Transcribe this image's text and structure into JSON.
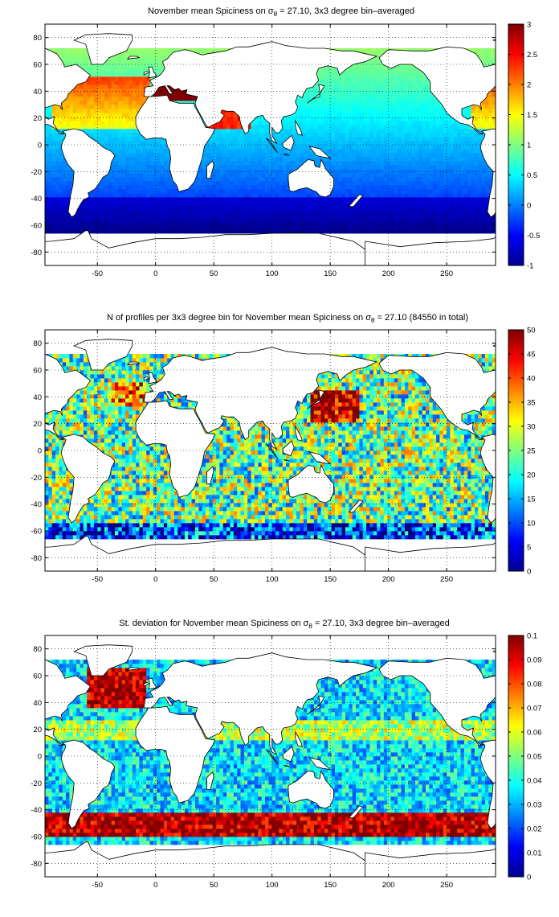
{
  "chart_data": [
    {
      "type": "heatmap",
      "title": "November mean Spiciness on σθ = 27.10, 3x3 degree bin–averaged",
      "title_parts": [
        "November mean Spiciness on ",
        "σ",
        "θ",
        " = 27.10, 3x3 degree bin–averaged"
      ],
      "xlim": [
        -95,
        292
      ],
      "ylim": [
        -90,
        90
      ],
      "xticks": [
        "-50",
        "0",
        "50",
        "100",
        "150",
        "200",
        "250"
      ],
      "xtick_values": [
        -50,
        0,
        50,
        100,
        150,
        200,
        250
      ],
      "yticks": [
        "80",
        "60",
        "40",
        "20",
        "0",
        "-20",
        "-40",
        "-60",
        "-80"
      ],
      "ytick_values": [
        80,
        60,
        40,
        20,
        0,
        -20,
        -40,
        -60,
        -80
      ],
      "colorbar": {
        "min": -1,
        "max": 3,
        "ticks": [
          "3",
          "2.5",
          "2",
          "1.5",
          "1",
          "0.5",
          "0",
          "-0.5",
          "-1"
        ],
        "tick_values": [
          3,
          2.5,
          2,
          1.5,
          1,
          0.5,
          0,
          -0.5,
          -1
        ]
      },
      "colormap": "jet",
      "grid": true
    },
    {
      "type": "heatmap",
      "title": "N of profiles per 3x3 degree bin for November mean Spiciness on σθ = 27.10 (84550 in total)",
      "title_parts": [
        "N of profiles per 3x3 degree bin for November mean Spiciness on ",
        "σ",
        "θ",
        " = 27.10 (84550 in total)"
      ],
      "xlim": [
        -95,
        292
      ],
      "ylim": [
        -90,
        90
      ],
      "xticks": [
        "-50",
        "0",
        "50",
        "100",
        "150",
        "200",
        "250"
      ],
      "xtick_values": [
        -50,
        0,
        50,
        100,
        150,
        200,
        250
      ],
      "yticks": [
        "80",
        "60",
        "40",
        "20",
        "0",
        "-20",
        "-40",
        "-60",
        "-80"
      ],
      "ytick_values": [
        80,
        60,
        40,
        20,
        0,
        -20,
        -40,
        -60,
        -80
      ],
      "colorbar": {
        "min": 0,
        "max": 50,
        "ticks": [
          "50",
          "45",
          "40",
          "35",
          "30",
          "25",
          "20",
          "15",
          "10",
          "5",
          "0"
        ],
        "tick_values": [
          50,
          45,
          40,
          35,
          30,
          25,
          20,
          15,
          10,
          5,
          0
        ]
      },
      "colormap": "jet",
      "grid": true
    },
    {
      "type": "heatmap",
      "title": "St. deviation for November mean Spiciness on σθ = 27.10, 3x3 degree bin–averaged",
      "title_parts": [
        "St. deviation for November mean Spiciness on ",
        "σ",
        "θ",
        " = 27.10, 3x3 degree bin–averaged"
      ],
      "xlim": [
        -95,
        292
      ],
      "ylim": [
        -90,
        90
      ],
      "xticks": [
        "-50",
        "0",
        "50",
        "100",
        "150",
        "200",
        "250"
      ],
      "xtick_values": [
        -50,
        0,
        50,
        100,
        150,
        200,
        250
      ],
      "yticks": [
        "80",
        "60",
        "40",
        "20",
        "0",
        "-20",
        "-40",
        "-60",
        "-80"
      ],
      "ytick_values": [
        80,
        60,
        40,
        20,
        0,
        -20,
        -40,
        -60,
        -80
      ],
      "colorbar": {
        "min": 0,
        "max": 0.1,
        "ticks": [
          "0.1",
          "0.09",
          "0.08",
          "0.07",
          "0.06",
          "0.05",
          "0.04",
          "0.03",
          "0.02",
          "0.01",
          "0"
        ],
        "tick_values": [
          0.1,
          0.09,
          0.08,
          0.07,
          0.06,
          0.05,
          0.04,
          0.03,
          0.02,
          0.01,
          0
        ]
      },
      "colormap": "jet",
      "grid": true
    }
  ]
}
